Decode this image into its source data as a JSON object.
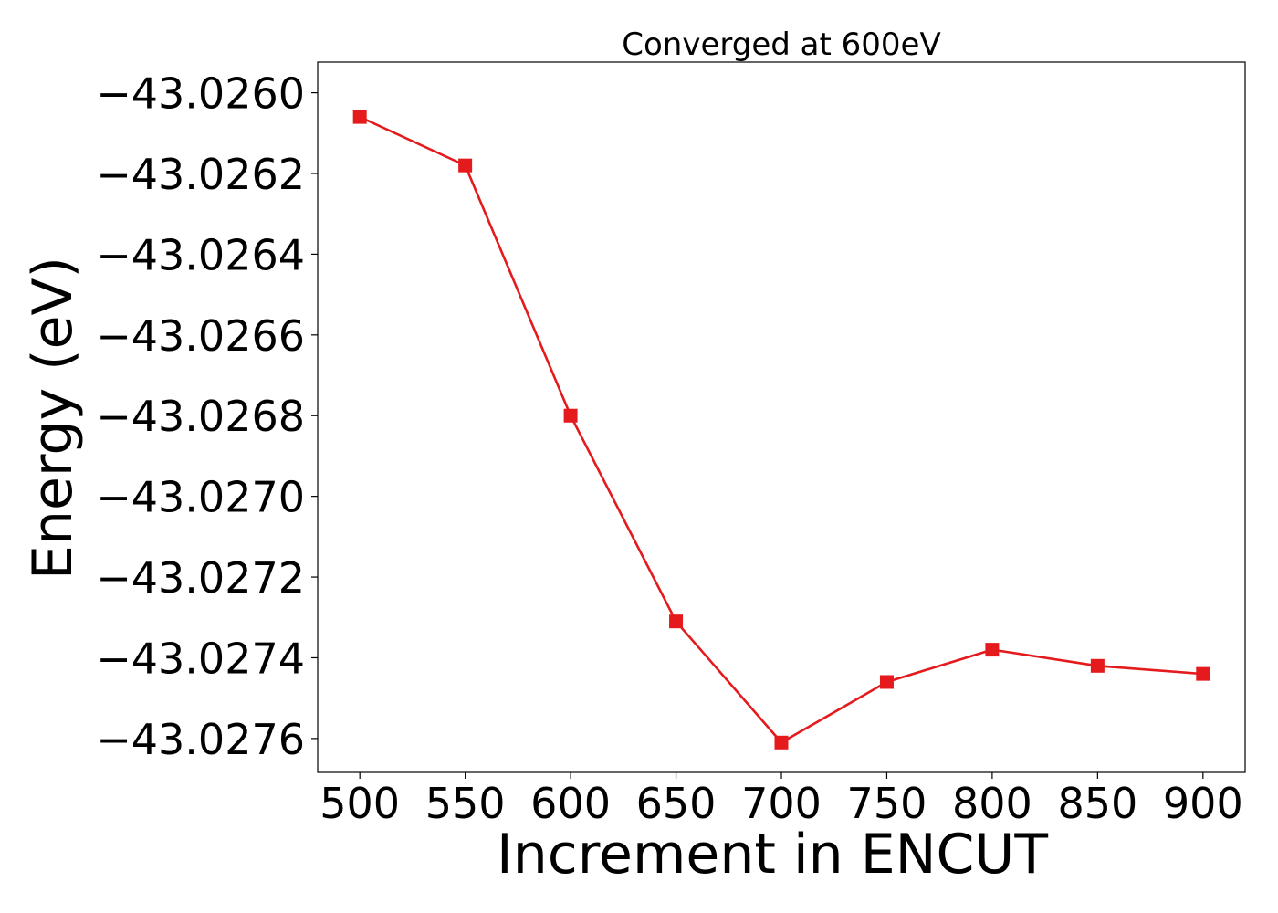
{
  "chart_data": {
    "type": "line",
    "title": "Converged at 600eV",
    "xlabel": "Increment in ENCUT",
    "ylabel": "Energy (eV)",
    "x": [
      500,
      550,
      600,
      650,
      700,
      750,
      800,
      850,
      900
    ],
    "series": [
      {
        "values": [
          -43.02606,
          -43.02618,
          -43.0268,
          -43.02731,
          -43.02761,
          -43.02746,
          -43.02738,
          -43.02742,
          -43.02744
        ],
        "color": "#e41a1c",
        "marker": "square"
      }
    ],
    "xticks": [
      500,
      550,
      600,
      650,
      700,
      750,
      800,
      850,
      900
    ],
    "xtick_labels": [
      "500",
      "550",
      "600",
      "650",
      "700",
      "750",
      "800",
      "850",
      "900"
    ],
    "yticks": [
      -43.026,
      -43.0262,
      -43.0264,
      -43.0266,
      -43.0268,
      -43.027,
      -43.0272,
      -43.0274,
      -43.0276
    ],
    "ytick_labels": [
      "−43.0260",
      "−43.0262",
      "−43.0264",
      "−43.0266",
      "−43.0268",
      "−43.0270",
      "−43.0272",
      "−43.0274",
      "−43.0276"
    ],
    "xlim": [
      480,
      920
    ],
    "ylim": [
      -43.027684,
      -43.025924
    ],
    "grid": false
  }
}
